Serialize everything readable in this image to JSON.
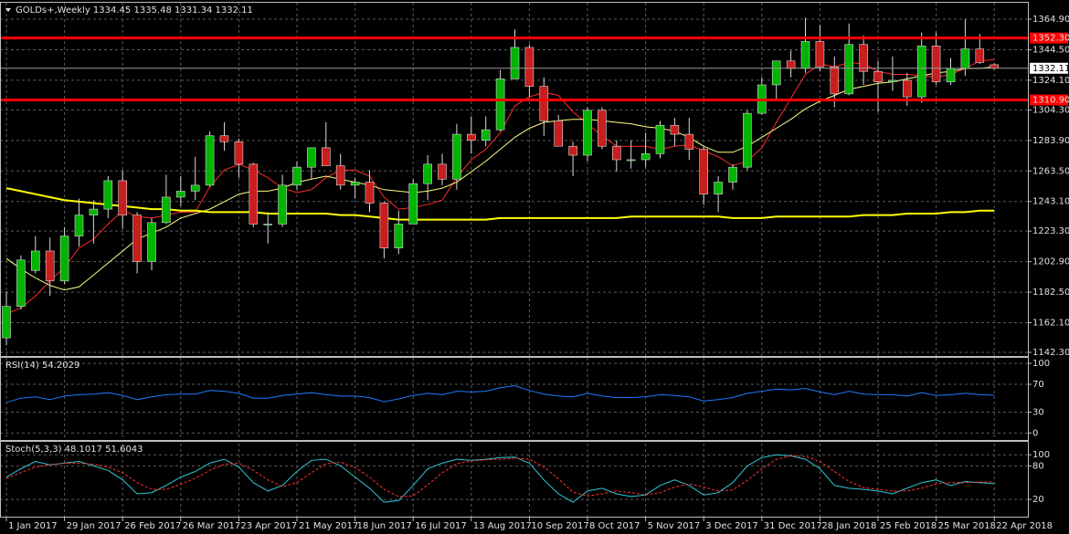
{
  "chart_data": [
    {
      "type": "candlestick",
      "title": "GOLDs+,Weekly 1334.45 1335.48 1331.34 1332.11",
      "categories": [
        "1 Jan 2017",
        null,
        null,
        null,
        "29 Jan 2017",
        null,
        null,
        null,
        "26 Feb 2017",
        null,
        null,
        null,
        "26 Mar 2017",
        null,
        null,
        null,
        "23 Apr 2017",
        null,
        null,
        null,
        "21 May 2017",
        null,
        null,
        null,
        "18 Jun 2017",
        null,
        null,
        null,
        "16 Jul 2017",
        null,
        null,
        null,
        "13 Aug 2017",
        null,
        null,
        null,
        "10 Sep 2017",
        null,
        null,
        null,
        "8 Oct 2017",
        null,
        null,
        null,
        "5 Nov 2017",
        null,
        null,
        null,
        "3 Dec 2017",
        null,
        null,
        null,
        "31 Dec 2017",
        null,
        null,
        null,
        "28 Jan 2018",
        null,
        null,
        null,
        "25 Feb 2018",
        null,
        null,
        null,
        "25 Mar 2018",
        null,
        null,
        null,
        "22 Apr 2018"
      ],
      "open": [
        1152,
        1173,
        1197,
        1210,
        1190,
        1220,
        1234,
        1238,
        1257,
        1234,
        1203,
        1229,
        1246,
        1250,
        1254,
        1287,
        1283,
        1268,
        1228,
        1228,
        1254,
        1266,
        1279,
        1267,
        1254,
        1256,
        1242,
        1212,
        1228,
        1255,
        1268,
        1258,
        1288,
        1284,
        1291,
        1325,
        1346,
        1320,
        1297,
        1280,
        1274,
        1304,
        1280,
        1271,
        1271,
        1275,
        1294,
        1288,
        1278,
        1248,
        1256,
        1266,
        1302,
        1321,
        1337,
        1332,
        1350,
        1333,
        1315,
        1348,
        1330,
        1323,
        1324,
        1313,
        1347,
        1323,
        1332,
        1345,
        1334.45
      ],
      "high": [
        1183,
        1207,
        1220,
        1219,
        1226,
        1245,
        1244,
        1260,
        1264,
        1236,
        1232,
        1261,
        1260,
        1273,
        1290,
        1296,
        1285,
        1269,
        1236,
        1261,
        1270,
        1278,
        1296,
        1275,
        1259,
        1264,
        1243,
        1237,
        1258,
        1274,
        1275,
        1295,
        1300,
        1300,
        1331,
        1358,
        1348,
        1326,
        1301,
        1283,
        1306,
        1306,
        1284,
        1284,
        1289,
        1297,
        1299,
        1299,
        1280,
        1260,
        1268,
        1304,
        1326,
        1337,
        1344,
        1366,
        1361,
        1340,
        1362,
        1354,
        1337,
        1340,
        1329,
        1356,
        1356,
        1339,
        1365,
        1355,
        1335.48
      ],
      "low": [
        1147,
        1171,
        1195,
        1180,
        1188,
        1213,
        1215,
        1232,
        1225,
        1195,
        1197,
        1228,
        1240,
        1244,
        1253,
        1277,
        1259,
        1226,
        1215,
        1226,
        1251,
        1258,
        1268,
        1251,
        1245,
        1236,
        1205,
        1208,
        1228,
        1244,
        1254,
        1251,
        1275,
        1280,
        1290,
        1325,
        1313,
        1287,
        1280,
        1260,
        1270,
        1278,
        1263,
        1265,
        1266,
        1272,
        1280,
        1271,
        1241,
        1236,
        1251,
        1264,
        1301,
        1311,
        1326,
        1329,
        1330,
        1306,
        1314,
        1321,
        1303,
        1317,
        1307,
        1309,
        1321,
        1321,
        1327,
        1335,
        1331.34
      ],
      "close": [
        1173,
        1204,
        1210,
        1190,
        1220,
        1234,
        1238,
        1257,
        1234,
        1203,
        1229,
        1246,
        1250,
        1254,
        1287,
        1283,
        1268,
        1228,
        1228,
        1254,
        1266,
        1279,
        1267,
        1254,
        1256,
        1242,
        1212,
        1228,
        1255,
        1268,
        1258,
        1288,
        1284,
        1291,
        1325,
        1346,
        1320,
        1297,
        1280,
        1274,
        1304,
        1280,
        1271,
        1271,
        1275,
        1294,
        1288,
        1278,
        1248,
        1256,
        1266,
        1302,
        1321,
        1337,
        1332,
        1350,
        1333,
        1315,
        1348,
        1330,
        1323,
        1324,
        1313,
        1347,
        1323,
        1332,
        1345,
        1336,
        1332.11
      ],
      "up_color": "#00b400",
      "down_color": "#c81e1e",
      "wick_color": "#d8d8d8",
      "series": [
        {
          "color": "#ff2a2a",
          "width": 1,
          "values": [
            1168,
            1172,
            1180,
            1190,
            1199,
            1212,
            1218,
            1228,
            1237,
            1233,
            1232,
            1234,
            1236,
            1236,
            1253,
            1264,
            1268,
            1264,
            1259,
            1252,
            1249,
            1251,
            1259,
            1264,
            1264,
            1260,
            1246,
            1238,
            1239,
            1241,
            1244,
            1259,
            1271,
            1278,
            1289,
            1307,
            1313,
            1316,
            1314,
            1303,
            1295,
            1287,
            1280,
            1280,
            1280,
            1278,
            1280,
            1281,
            1277,
            1273,
            1267,
            1270,
            1279,
            1296,
            1312,
            1328,
            1335,
            1333,
            1336,
            1335,
            1330,
            1328,
            1328,
            1327,
            1326,
            1328,
            1332,
            1337,
            1338
          ]
        },
        {
          "color": "#ffff80",
          "width": 1,
          "values": [
            1205,
            1198,
            1192,
            1187,
            1184,
            1186,
            1194,
            1202,
            1210,
            1218,
            1222,
            1226,
            1232,
            1235,
            1238,
            1243,
            1248,
            1250,
            1250,
            1252,
            1256,
            1258,
            1260,
            1258,
            1256,
            1254,
            1251,
            1250,
            1249,
            1250,
            1252,
            1256,
            1263,
            1270,
            1278,
            1286,
            1292,
            1296,
            1297,
            1298,
            1298,
            1297,
            1296,
            1295,
            1293,
            1292,
            1290,
            1286,
            1280,
            1276,
            1276,
            1280,
            1286,
            1292,
            1298,
            1305,
            1310,
            1314,
            1318,
            1320,
            1322,
            1323,
            1325,
            1327,
            1329,
            1330,
            1332,
            1332,
            1333
          ]
        },
        {
          "color": "#ffff00",
          "width": 2,
          "values": [
            1252,
            1250,
            1248,
            1246,
            1244,
            1243,
            1242,
            1241,
            1240,
            1239,
            1238,
            1238,
            1237,
            1237,
            1236,
            1236,
            1236,
            1236,
            1235,
            1235,
            1235,
            1235,
            1235,
            1234,
            1234,
            1233,
            1232,
            1231,
            1231,
            1231,
            1231,
            1231,
            1231,
            1231,
            1232,
            1232,
            1232,
            1232,
            1232,
            1232,
            1232,
            1232,
            1232,
            1233,
            1233,
            1233,
            1233,
            1233,
            1233,
            1233,
            1232,
            1232,
            1232,
            1233,
            1233,
            1233,
            1233,
            1233,
            1233,
            1234,
            1234,
            1234,
            1235,
            1235,
            1235,
            1236,
            1236,
            1237,
            1237
          ]
        }
      ],
      "ylim": [
        1139.86,
        1375.88
      ],
      "yticks": [
        {
          "value": 1364.9,
          "label": "1364.90"
        },
        {
          "value": 1344.5,
          "label": "1344.50"
        },
        {
          "value": 1324.1,
          "label": "1324.10"
        },
        {
          "value": 1304.3,
          "label": "1304.30"
        },
        {
          "value": 1283.9,
          "label": "1283.90"
        },
        {
          "value": 1263.5,
          "label": "1263.50"
        },
        {
          "value": 1243.1,
          "label": "1243.10"
        },
        {
          "value": 1223.3,
          "label": "1223.30"
        },
        {
          "value": 1202.9,
          "label": "1202.90"
        },
        {
          "value": 1182.5,
          "label": "1182.50"
        },
        {
          "value": 1162.1,
          "label": "1162.10"
        },
        {
          "value": 1142.3,
          "label": "1142.30"
        }
      ],
      "hlines": [
        {
          "value": 1352.3,
          "label": "1352.30",
          "color": "#ff0000"
        },
        {
          "value": 1310.9,
          "label": "1310.90",
          "color": "#ff0000"
        }
      ],
      "last": 1332.11,
      "grid": true
    },
    {
      "type": "line",
      "title": "RSI(14) 54.2029",
      "series": [
        {
          "color": "#1e78ff",
          "values": [
            44,
            50,
            52,
            48,
            53,
            55,
            56,
            58,
            54,
            48,
            52,
            55,
            56,
            56,
            61,
            60,
            57,
            50,
            50,
            54,
            56,
            58,
            55,
            53,
            53,
            51,
            45,
            49,
            54,
            57,
            55,
            60,
            59,
            60,
            65,
            68,
            61,
            56,
            53,
            52,
            57,
            53,
            51,
            51,
            52,
            55,
            54,
            52,
            46,
            48,
            51,
            57,
            60,
            63,
            62,
            64,
            59,
            55,
            60,
            56,
            55,
            55,
            53,
            58,
            54,
            55,
            57,
            55,
            54.2029
          ]
        }
      ],
      "ylim": [
        -10,
        108
      ],
      "yticks": [
        0,
        30,
        70,
        100
      ],
      "grid": true
    },
    {
      "type": "line",
      "title": "Stoch(5,3,3) 48.1017 51.6043",
      "series": [
        {
          "color": "#30c8d8",
          "values": [
            60,
            75,
            88,
            82,
            85,
            88,
            80,
            72,
            55,
            30,
            32,
            45,
            60,
            70,
            85,
            92,
            78,
            50,
            35,
            45,
            70,
            90,
            92,
            80,
            60,
            40,
            15,
            18,
            45,
            75,
            85,
            92,
            90,
            92,
            95,
            96,
            85,
            55,
            30,
            15,
            35,
            40,
            30,
            25,
            28,
            45,
            55,
            45,
            28,
            32,
            50,
            80,
            95,
            100,
            98,
            92,
            75,
            45,
            40,
            38,
            35,
            30,
            40,
            50,
            55,
            45,
            52,
            50,
            48.1017
          ]
        },
        {
          "color": "#ff3030",
          "dash": true,
          "values": [
            58,
            68,
            78,
            82,
            85,
            85,
            83,
            78,
            68,
            50,
            38,
            38,
            47,
            58,
            72,
            83,
            85,
            72,
            55,
            43,
            50,
            68,
            84,
            87,
            77,
            60,
            38,
            25,
            26,
            46,
            68,
            84,
            89,
            91,
            92,
            94,
            92,
            78,
            57,
            33,
            26,
            30,
            35,
            32,
            28,
            32,
            42,
            48,
            42,
            35,
            37,
            54,
            75,
            92,
            98,
            97,
            88,
            70,
            52,
            41,
            38,
            35,
            35,
            40,
            48,
            50,
            50,
            51,
            51.6043
          ]
        }
      ],
      "ylim": [
        -11,
        120
      ],
      "yticks": [
        20,
        80,
        100
      ],
      "grid": true
    }
  ]
}
